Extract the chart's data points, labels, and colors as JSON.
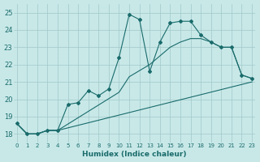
{
  "xlabel": "Humidex (Indice chaleur)",
  "xlim": [
    -0.3,
    23.3
  ],
  "ylim": [
    17.5,
    25.5
  ],
  "yticks": [
    18,
    19,
    20,
    21,
    22,
    23,
    24,
    25
  ],
  "xticks": [
    0,
    1,
    2,
    3,
    4,
    5,
    6,
    7,
    8,
    9,
    10,
    11,
    12,
    13,
    14,
    15,
    16,
    17,
    18,
    19,
    20,
    21,
    22,
    23
  ],
  "bg_color": "#c8e8e8",
  "grid_color": "#a0c8c8",
  "line_color": "#1a6b6b",
  "line1_x": [
    0,
    1,
    2,
    3,
    4,
    5,
    6,
    7,
    8,
    9,
    10,
    11,
    12,
    13,
    14,
    15,
    16,
    17,
    18,
    19,
    20,
    21,
    22,
    23
  ],
  "line1_y": [
    18.6,
    18.0,
    18.0,
    18.2,
    18.2,
    19.7,
    19.8,
    20.5,
    20.2,
    20.6,
    22.4,
    24.9,
    24.6,
    21.6,
    23.3,
    24.4,
    24.5,
    24.5,
    23.7,
    23.3,
    23.0,
    23.0,
    21.4,
    21.2
  ],
  "line2_x": [
    0,
    1,
    2,
    3,
    4,
    10,
    11,
    13,
    14,
    15,
    16,
    17,
    18,
    19,
    20,
    21,
    22,
    23
  ],
  "line2_y": [
    18.6,
    18.0,
    18.0,
    18.2,
    18.2,
    20.4,
    21.3,
    22.0,
    22.5,
    23.0,
    23.3,
    23.5,
    23.5,
    23.3,
    23.0,
    23.0,
    21.4,
    21.2
  ],
  "line3_x": [
    0,
    1,
    2,
    3,
    4,
    23
  ],
  "line3_y": [
    18.6,
    18.0,
    18.0,
    18.2,
    18.2,
    21.0
  ]
}
